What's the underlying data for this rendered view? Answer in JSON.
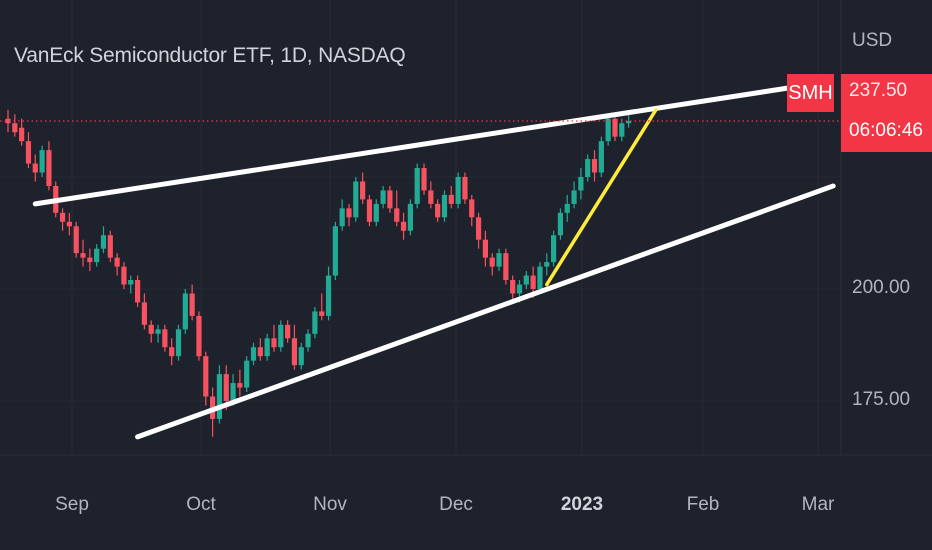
{
  "chart": {
    "title": "VanEck Semiconductor ETF, 1D, NASDAQ",
    "currency": "USD",
    "symbol_badge": "SMH",
    "last_price_label": "237.50",
    "countdown": "06:06:46"
  },
  "colors": {
    "background": "#1e222d",
    "up": "#22ab94",
    "down": "#f7525f",
    "trendline": "#ffffff",
    "accent_line": "#ffeb3b",
    "badge": "#f23645"
  },
  "chart_data": {
    "type": "candlestick",
    "title": "VanEck Semiconductor ETF, 1D, NASDAQ",
    "y_axis": {
      "unit": "USD",
      "ticks": [
        "175.00",
        "200.00"
      ],
      "range": [
        163,
        246
      ]
    },
    "x_axis": {
      "ticks": [
        "Sep",
        "Oct",
        "Nov",
        "Dec",
        "2023",
        "Feb",
        "Mar"
      ],
      "bold_tick": "2023"
    },
    "series": [
      {
        "name": "SMH",
        "candles": [
          {
            "o": 238,
            "h": 240,
            "l": 235,
            "c": 237
          },
          {
            "o": 237,
            "h": 239,
            "l": 234,
            "c": 235
          },
          {
            "o": 236,
            "h": 238,
            "l": 232,
            "c": 233
          },
          {
            "o": 233,
            "h": 235,
            "l": 227,
            "c": 228
          },
          {
            "o": 228,
            "h": 230,
            "l": 224,
            "c": 226
          },
          {
            "o": 226,
            "h": 232,
            "l": 225,
            "c": 231
          },
          {
            "o": 231,
            "h": 233,
            "l": 222,
            "c": 223
          },
          {
            "o": 223,
            "h": 224,
            "l": 216,
            "c": 217
          },
          {
            "o": 217,
            "h": 218,
            "l": 213,
            "c": 215
          },
          {
            "o": 215,
            "h": 217,
            "l": 212,
            "c": 214
          },
          {
            "o": 214,
            "h": 215,
            "l": 207,
            "c": 208
          },
          {
            "o": 208,
            "h": 211,
            "l": 205,
            "c": 207
          },
          {
            "o": 207,
            "h": 209,
            "l": 204,
            "c": 206
          },
          {
            "o": 206,
            "h": 210,
            "l": 205,
            "c": 209
          },
          {
            "o": 209,
            "h": 214,
            "l": 208,
            "c": 212
          },
          {
            "o": 212,
            "h": 213,
            "l": 206,
            "c": 207
          },
          {
            "o": 207,
            "h": 208,
            "l": 203,
            "c": 205
          },
          {
            "o": 205,
            "h": 206,
            "l": 200,
            "c": 201
          },
          {
            "o": 201,
            "h": 203,
            "l": 199,
            "c": 202
          },
          {
            "o": 202,
            "h": 203,
            "l": 196,
            "c": 197
          },
          {
            "o": 197,
            "h": 199,
            "l": 191,
            "c": 192
          },
          {
            "o": 192,
            "h": 193,
            "l": 188,
            "c": 190
          },
          {
            "o": 190,
            "h": 192,
            "l": 188,
            "c": 191
          },
          {
            "o": 191,
            "h": 192,
            "l": 186,
            "c": 187
          },
          {
            "o": 187,
            "h": 189,
            "l": 183,
            "c": 185
          },
          {
            "o": 185,
            "h": 192,
            "l": 184,
            "c": 191
          },
          {
            "o": 191,
            "h": 200,
            "l": 190,
            "c": 199
          },
          {
            "o": 199,
            "h": 201,
            "l": 193,
            "c": 194
          },
          {
            "o": 194,
            "h": 195,
            "l": 184,
            "c": 185
          },
          {
            "o": 185,
            "h": 186,
            "l": 174,
            "c": 176
          },
          {
            "o": 176,
            "h": 178,
            "l": 167,
            "c": 171
          },
          {
            "o": 171,
            "h": 183,
            "l": 170,
            "c": 181
          },
          {
            "o": 181,
            "h": 183,
            "l": 173,
            "c": 175
          },
          {
            "o": 175,
            "h": 181,
            "l": 174,
            "c": 179
          },
          {
            "o": 179,
            "h": 182,
            "l": 176,
            "c": 178
          },
          {
            "o": 178,
            "h": 185,
            "l": 177,
            "c": 184
          },
          {
            "o": 184,
            "h": 188,
            "l": 183,
            "c": 187
          },
          {
            "o": 187,
            "h": 189,
            "l": 184,
            "c": 185
          },
          {
            "o": 185,
            "h": 190,
            "l": 184,
            "c": 189
          },
          {
            "o": 189,
            "h": 192,
            "l": 186,
            "c": 187
          },
          {
            "o": 187,
            "h": 193,
            "l": 186,
            "c": 192
          },
          {
            "o": 192,
            "h": 193,
            "l": 188,
            "c": 189
          },
          {
            "o": 189,
            "h": 192,
            "l": 182,
            "c": 183
          },
          {
            "o": 183,
            "h": 188,
            "l": 182,
            "c": 187
          },
          {
            "o": 187,
            "h": 191,
            "l": 186,
            "c": 190
          },
          {
            "o": 190,
            "h": 196,
            "l": 189,
            "c": 195
          },
          {
            "o": 195,
            "h": 199,
            "l": 193,
            "c": 194
          },
          {
            "o": 194,
            "h": 205,
            "l": 193,
            "c": 203
          },
          {
            "o": 203,
            "h": 215,
            "l": 202,
            "c": 214
          },
          {
            "o": 214,
            "h": 220,
            "l": 213,
            "c": 218
          },
          {
            "o": 218,
            "h": 219,
            "l": 214,
            "c": 216
          },
          {
            "o": 216,
            "h": 225,
            "l": 215,
            "c": 224
          },
          {
            "o": 224,
            "h": 226,
            "l": 219,
            "c": 220
          },
          {
            "o": 220,
            "h": 221,
            "l": 214,
            "c": 215
          },
          {
            "o": 215,
            "h": 220,
            "l": 214,
            "c": 219
          },
          {
            "o": 219,
            "h": 223,
            "l": 218,
            "c": 222
          },
          {
            "o": 222,
            "h": 223,
            "l": 217,
            "c": 218
          },
          {
            "o": 218,
            "h": 222,
            "l": 214,
            "c": 215
          },
          {
            "o": 215,
            "h": 217,
            "l": 211,
            "c": 213
          },
          {
            "o": 213,
            "h": 220,
            "l": 212,
            "c": 219
          },
          {
            "o": 219,
            "h": 228,
            "l": 218,
            "c": 227
          },
          {
            "o": 227,
            "h": 228,
            "l": 221,
            "c": 222
          },
          {
            "o": 222,
            "h": 224,
            "l": 218,
            "c": 219
          },
          {
            "o": 219,
            "h": 220,
            "l": 215,
            "c": 216
          },
          {
            "o": 216,
            "h": 222,
            "l": 215,
            "c": 221
          },
          {
            "o": 221,
            "h": 223,
            "l": 218,
            "c": 219
          },
          {
            "o": 219,
            "h": 226,
            "l": 218,
            "c": 225
          },
          {
            "o": 225,
            "h": 226,
            "l": 219,
            "c": 220
          },
          {
            "o": 220,
            "h": 221,
            "l": 214,
            "c": 216
          },
          {
            "o": 216,
            "h": 217,
            "l": 209,
            "c": 211
          },
          {
            "o": 211,
            "h": 213,
            "l": 205,
            "c": 207
          },
          {
            "o": 207,
            "h": 208,
            "l": 203,
            "c": 205
          },
          {
            "o": 205,
            "h": 209,
            "l": 204,
            "c": 208
          },
          {
            "o": 208,
            "h": 209,
            "l": 201,
            "c": 202
          },
          {
            "o": 202,
            "h": 203,
            "l": 197,
            "c": 199
          },
          {
            "o": 199,
            "h": 202,
            "l": 197,
            "c": 201
          },
          {
            "o": 201,
            "h": 204,
            "l": 200,
            "c": 203
          },
          {
            "o": 203,
            "h": 205,
            "l": 198,
            "c": 200
          },
          {
            "o": 200,
            "h": 206,
            "l": 199,
            "c": 205
          },
          {
            "o": 205,
            "h": 208,
            "l": 203,
            "c": 206
          },
          {
            "o": 206,
            "h": 213,
            "l": 205,
            "c": 212
          },
          {
            "o": 212,
            "h": 218,
            "l": 211,
            "c": 217
          },
          {
            "o": 217,
            "h": 221,
            "l": 215,
            "c": 219
          },
          {
            "o": 219,
            "h": 224,
            "l": 218,
            "c": 222
          },
          {
            "o": 222,
            "h": 227,
            "l": 220,
            "c": 225
          },
          {
            "o": 225,
            "h": 230,
            "l": 224,
            "c": 229
          },
          {
            "o": 229,
            "h": 231,
            "l": 224,
            "c": 226
          },
          {
            "o": 226,
            "h": 234,
            "l": 225,
            "c": 233
          },
          {
            "o": 233,
            "h": 239,
            "l": 232,
            "c": 238
          },
          {
            "o": 238,
            "h": 239,
            "l": 233,
            "c": 234
          },
          {
            "o": 234,
            "h": 238,
            "l": 233,
            "c": 237
          },
          {
            "o": 237,
            "h": 239,
            "l": 236,
            "c": 237.5
          }
        ]
      }
    ],
    "last_price": 237.5,
    "drawings": [
      {
        "type": "trendline",
        "color": "white",
        "from": {
          "bar": 4,
          "price": 219
        },
        "to": {
          "bar": 115,
          "price": 245
        }
      },
      {
        "type": "trendline",
        "color": "white",
        "from": {
          "bar": 19,
          "price": 167
        },
        "to": {
          "bar": 121,
          "price": 223
        }
      },
      {
        "type": "trendline",
        "color": "yellow",
        "from": {
          "bar": 79,
          "price": 201
        },
        "to": {
          "bar": 95,
          "price": 240
        }
      }
    ],
    "price_line": {
      "value": 237.5,
      "style": "dotted",
      "color": "#f23645"
    },
    "grid": true
  }
}
